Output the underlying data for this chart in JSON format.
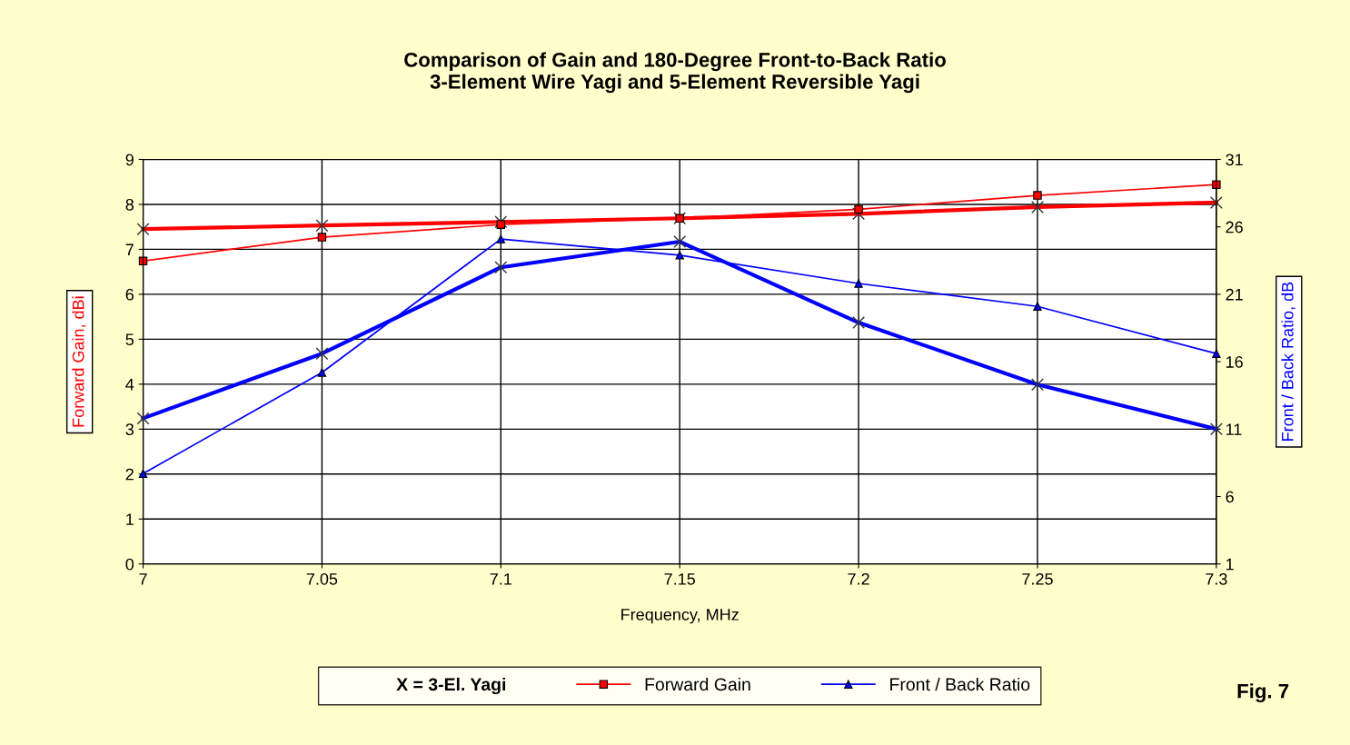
{
  "chart_data": {
    "type": "line",
    "title": "Comparison of Gain and 180-Degree Front-to-Back Ratio\n3-Element Wire Yagi and 5-Element Reversible Yagi",
    "xlabel": "Frequency, MHz",
    "ylabel": "Forward Gain, dBi",
    "y2label": "Front / Back Ratio, dB",
    "x": [
      7,
      7.05,
      7.1,
      7.15,
      7.2,
      7.25,
      7.3
    ],
    "series": [
      {
        "name": "Forward Gain",
        "color": "#ff0000",
        "marker": "square",
        "values": [
          6.74,
          7.27,
          7.55,
          7.69,
          7.89,
          8.2,
          8.44
        ]
      },
      {
        "color": "#ff0000",
        "marker": "cross",
        "values": [
          7.45,
          7.53,
          7.61,
          7.69,
          7.79,
          7.94,
          8.04
        ]
      },
      {
        "name": "Front / Back Ratio",
        "color": "#0000ff",
        "marker": "triangle",
        "axis": "y2",
        "values": [
          7.7,
          15.2,
          25.1,
          23.9,
          21.8,
          20.1,
          16.6
        ]
      },
      {
        "color": "#0000ff",
        "marker": "cross",
        "axis": "y2",
        "values": [
          11.8,
          16.6,
          23.0,
          24.9,
          18.9,
          14.3,
          11.0
        ]
      }
    ],
    "xlim": [
      7,
      7.3
    ],
    "xticks": [
      7,
      7.05,
      7.1,
      7.15,
      7.2,
      7.25,
      7.3
    ],
    "ylim": [
      0,
      9
    ],
    "yticks": [
      0,
      1,
      2,
      3,
      4,
      5,
      6,
      7,
      8,
      9
    ],
    "y2lim": [
      1,
      31
    ],
    "y2ticks": [
      1,
      6,
      11,
      16,
      21,
      26,
      31
    ],
    "grid": true,
    "legend": "bottom",
    "legend_title": "X = 3-El. Yagi",
    "line_style": "solid",
    "annotations": [
      "Fig. 7"
    ]
  }
}
